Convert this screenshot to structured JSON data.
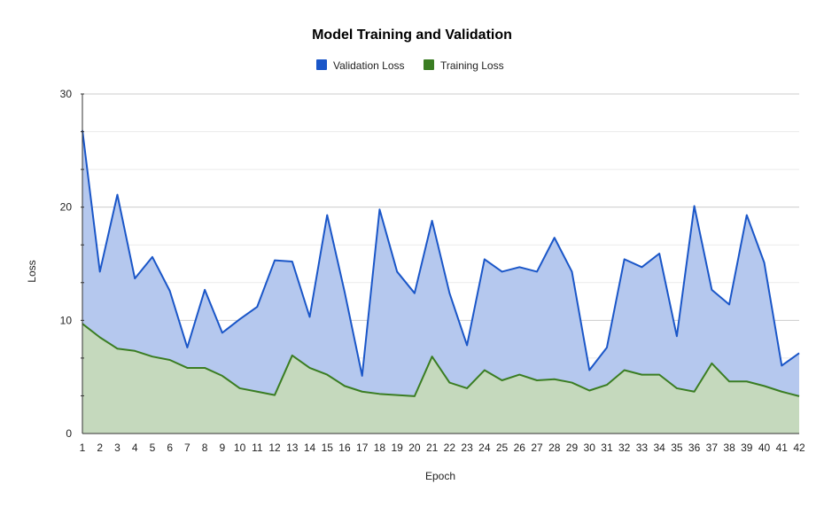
{
  "chart_data": {
    "type": "area",
    "title": "Model Training and Validation",
    "xlabel": "Epoch",
    "ylabel": "Loss",
    "ylim": [
      0,
      30
    ],
    "yticks": [
      0,
      10,
      20,
      30
    ],
    "legend_position": "top-center",
    "grid": true,
    "x": [
      1,
      2,
      3,
      4,
      5,
      6,
      7,
      8,
      9,
      10,
      11,
      12,
      13,
      14,
      15,
      16,
      17,
      18,
      19,
      20,
      21,
      22,
      23,
      24,
      25,
      26,
      27,
      28,
      29,
      30,
      31,
      32,
      33,
      34,
      35,
      36,
      37,
      38,
      39,
      40,
      41,
      42
    ],
    "series": [
      {
        "name": "Validation Loss",
        "line_color": "#1a56c8",
        "fill_color": "#b5c8ee",
        "values": [
          26.8,
          14.3,
          21.1,
          13.7,
          15.6,
          12.6,
          7.6,
          12.7,
          8.9,
          10.1,
          11.2,
          15.3,
          15.2,
          10.3,
          19.3,
          12.5,
          5.1,
          19.8,
          14.3,
          12.4,
          18.8,
          12.4,
          7.8,
          15.4,
          14.3,
          14.7,
          14.3,
          17.3,
          14.3,
          5.6,
          7.6,
          15.4,
          14.7,
          15.9,
          8.6,
          20.1,
          12.7,
          11.4,
          19.3,
          15.1,
          6.0,
          7.1
        ]
      },
      {
        "name": "Training Loss",
        "line_color": "#3a7d22",
        "fill_color": "#c5d9bd",
        "values": [
          9.7,
          8.5,
          7.5,
          7.3,
          6.8,
          6.5,
          5.8,
          5.8,
          5.1,
          4.0,
          3.7,
          3.4,
          6.9,
          5.8,
          5.2,
          4.2,
          3.7,
          3.5,
          3.4,
          3.3,
          6.8,
          4.5,
          4.0,
          5.6,
          4.7,
          5.2,
          4.7,
          4.8,
          4.5,
          3.8,
          4.3,
          5.6,
          5.2,
          5.2,
          4.0,
          3.7,
          6.2,
          4.6,
          4.6,
          4.2,
          3.7,
          3.3
        ]
      }
    ]
  }
}
